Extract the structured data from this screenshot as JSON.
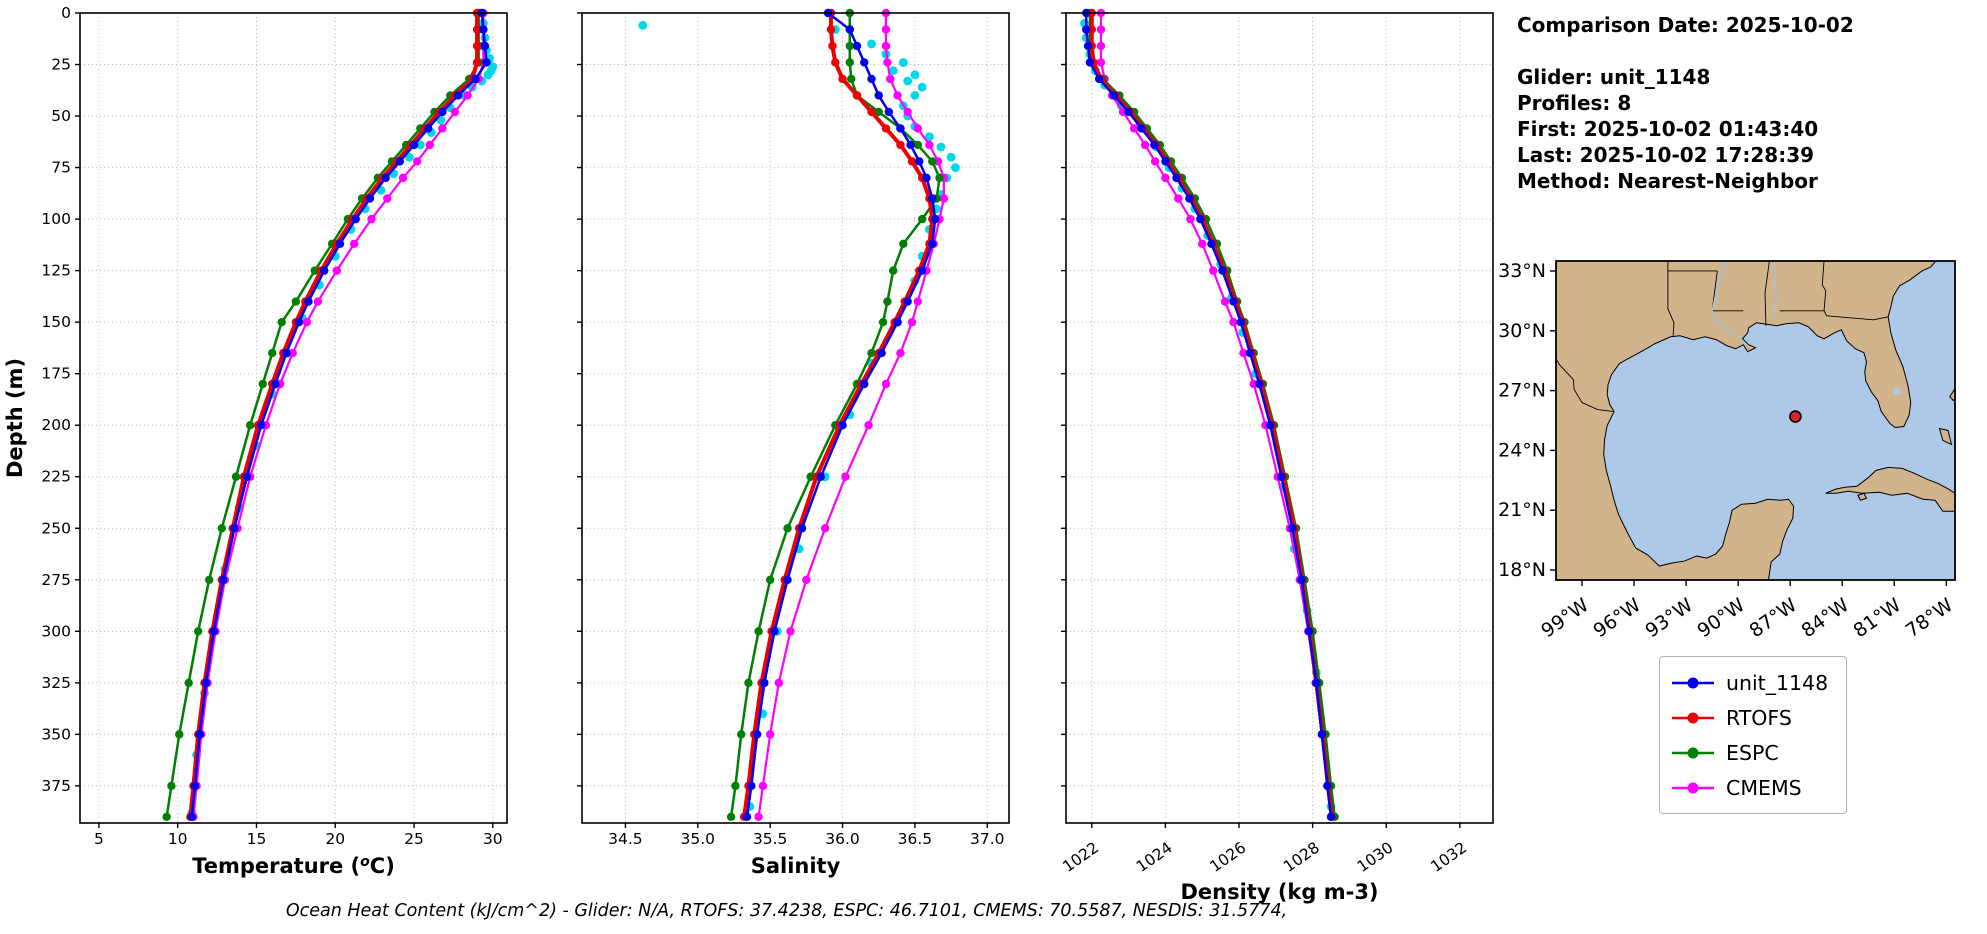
{
  "info_panel": {
    "lines": [
      "Comparison Date: 2025-10-02",
      "",
      "Glider: unit_1148",
      "Profiles: 8",
      "First: 2025-10-02 01:43:40",
      "Last: 2025-10-02 17:28:39",
      "Method: Nearest-Neighbor"
    ]
  },
  "caption": "Ocean Heat Content (kJ/cm^2) - Glider: N/A,  RTOFS: 37.4238,  ESPC: 46.7101,  CMEMS: 70.5587,  NESDIS: 31.5774,",
  "ocean_heat_content": {
    "glider": "N/A",
    "rtofs": 37.4238,
    "espc": 46.7101,
    "cmems": 70.5587,
    "nesdis": 31.5774
  },
  "legend": {
    "items": [
      {
        "label": "unit_1148",
        "color": "#0000EE"
      },
      {
        "label": "RTOFS",
        "color": "#EE0000"
      },
      {
        "label": "ESPC",
        "color": "#008000"
      },
      {
        "label": "CMEMS",
        "color": "#FF00FF"
      }
    ]
  },
  "map": {
    "extent": {
      "lon_min": -100.5,
      "lon_max": -77.5,
      "lat_min": 17.5,
      "lat_max": 33.5
    },
    "lat_tick_values": [
      33,
      30,
      27,
      24,
      21,
      18
    ],
    "lat_tick_labels": [
      "33°N",
      "30°N",
      "27°N",
      "24°N",
      "21°N",
      "18°N"
    ],
    "lon_tick_values": [
      -99,
      -96,
      -93,
      -90,
      -87,
      -84,
      -81,
      -78
    ],
    "lon_tick_labels": [
      "99°W",
      "96°W",
      "93°W",
      "90°W",
      "87°W",
      "84°W",
      "81°W",
      "78°W"
    ],
    "marker": {
      "lon": -86.7,
      "lat": 25.7,
      "color": "#d62728",
      "edge": "#000000"
    },
    "land_color": "#d2b48c",
    "ocean_color": "#aec9e8"
  },
  "chart_data": {
    "type": "line",
    "title": "Glider profile comparison vs models",
    "depth_axis": {
      "label": "Depth (m)",
      "ticks": [
        0,
        25,
        50,
        75,
        100,
        125,
        150,
        175,
        200,
        225,
        250,
        275,
        300,
        325,
        350,
        375
      ],
      "range": [
        0,
        393
      ],
      "inverted": true
    },
    "depths": [
      0,
      8,
      16,
      24,
      32,
      40,
      48,
      56,
      64,
      72,
      80,
      90,
      100,
      112,
      125,
      140,
      150,
      165,
      180,
      200,
      225,
      250,
      275,
      300,
      325,
      350,
      375,
      390
    ],
    "scatter_color": "#00D8E8",
    "panels": [
      {
        "id": "temperature",
        "xlabel_pre": "Temperature (",
        "xlabel_sup": "o",
        "xlabel_post": "C)",
        "x_range": [
          3.8,
          30.9
        ],
        "x_ticks": [
          5,
          10,
          15,
          20,
          25,
          30
        ],
        "x_tick_labels": [
          "5",
          "10",
          "15",
          "20",
          "25",
          "30"
        ],
        "rotate_x_labels": false,
        "series": [
          {
            "name": "CMEMS",
            "color": "#FF00FF",
            "lw": 2.2,
            "values": [
              29.4,
              29.4,
              29.4,
              29.4,
              29.1,
              28.4,
              27.6,
              26.8,
              26.0,
              25.2,
              24.3,
              23.3,
              22.3,
              21.2,
              20.1,
              18.9,
              18.2,
              17.3,
              16.5,
              15.6,
              14.6,
              13.8,
              13.0,
              12.4,
              11.9,
              11.5,
              11.2,
              11.0
            ]
          },
          {
            "name": "ESPC",
            "color": "#008000",
            "lw": 2.5,
            "values": [
              29.1,
              29.1,
              29.1,
              29.1,
              28.5,
              27.3,
              26.3,
              25.4,
              24.5,
              23.6,
              22.7,
              21.7,
              20.8,
              19.8,
              18.7,
              17.5,
              16.6,
              16.0,
              15.4,
              14.6,
              13.7,
              12.8,
              12.0,
              11.3,
              10.7,
              10.1,
              9.6,
              9.3
            ]
          },
          {
            "name": "RTOFS",
            "color": "#EE0000",
            "lw": 4,
            "values": [
              29.0,
              29.0,
              29.0,
              29.0,
              28.7,
              27.6,
              26.6,
              25.7,
              24.8,
              23.9,
              23.0,
              22.0,
              21.1,
              20.1,
              19.1,
              18.1,
              17.5,
              16.7,
              16.0,
              15.1,
              14.2,
              13.5,
              12.8,
              12.2,
              11.7,
              11.3,
              11.0,
              10.8
            ]
          },
          {
            "name": "unit_1148",
            "color": "#0000EE",
            "lw": 2.5,
            "values": [
              29.3,
              29.4,
              29.5,
              29.6,
              28.9,
              27.8,
              26.8,
              25.9,
              25.0,
              24.1,
              23.2,
              22.2,
              21.3,
              20.3,
              19.3,
              18.3,
              17.7,
              16.9,
              16.2,
              15.3,
              14.4,
              13.6,
              12.9,
              12.3,
              11.8,
              11.4,
              11.1,
              10.9
            ]
          }
        ],
        "scatter_points": [
          [
            5,
            29.4
          ],
          [
            12,
            29.5
          ],
          [
            18,
            29.6
          ],
          [
            22,
            29.8
          ],
          [
            26,
            30.0
          ],
          [
            28,
            29.9
          ],
          [
            30,
            29.7
          ],
          [
            33,
            29.3
          ],
          [
            36,
            28.7
          ],
          [
            40,
            28.2
          ],
          [
            46,
            27.3
          ],
          [
            52,
            26.7
          ],
          [
            58,
            26.1
          ],
          [
            64,
            25.4
          ],
          [
            70,
            24.7
          ],
          [
            78,
            23.7
          ],
          [
            86,
            22.9
          ],
          [
            95,
            21.9
          ],
          [
            105,
            21.0
          ],
          [
            118,
            20.0
          ],
          [
            132,
            19.0
          ],
          [
            148,
            17.9
          ],
          [
            165,
            17.0
          ],
          [
            185,
            16.0
          ],
          [
            210,
            15.0
          ],
          [
            240,
            13.9
          ],
          [
            270,
            13.0
          ],
          [
            300,
            12.3
          ],
          [
            330,
            11.7
          ],
          [
            360,
            11.2
          ],
          [
            388,
            10.9
          ]
        ]
      },
      {
        "id": "salinity",
        "xlabel_pre": "Salinity",
        "xlabel_sup": "",
        "xlabel_post": "",
        "x_range": [
          34.2,
          37.15
        ],
        "x_ticks": [
          34.5,
          35.0,
          35.5,
          36.0,
          36.5,
          37.0
        ],
        "x_tick_labels": [
          "34.5",
          "35.0",
          "35.5",
          "36.0",
          "36.5",
          "37.0"
        ],
        "rotate_x_labels": false,
        "series": [
          {
            "name": "CMEMS",
            "color": "#FF00FF",
            "lw": 2.2,
            "values": [
              36.3,
              36.3,
              36.3,
              36.31,
              36.33,
              36.38,
              36.45,
              36.52,
              36.6,
              36.66,
              36.7,
              36.7,
              36.67,
              36.63,
              36.58,
              36.52,
              36.48,
              36.4,
              36.3,
              36.18,
              36.02,
              35.88,
              35.75,
              35.64,
              35.56,
              35.5,
              35.45,
              35.42
            ]
          },
          {
            "name": "ESPC",
            "color": "#008000",
            "lw": 2.5,
            "values": [
              36.05,
              36.05,
              36.05,
              36.05,
              36.06,
              36.1,
              36.25,
              36.4,
              36.52,
              36.62,
              36.67,
              36.65,
              36.55,
              36.42,
              36.35,
              36.31,
              36.28,
              36.2,
              36.1,
              35.95,
              35.78,
              35.62,
              35.5,
              35.42,
              35.35,
              35.3,
              35.26,
              35.23
            ]
          },
          {
            "name": "RTOFS",
            "color": "#EE0000",
            "lw": 4,
            "values": [
              35.92,
              35.92,
              35.93,
              35.95,
              36.0,
              36.1,
              36.2,
              36.3,
              36.4,
              36.48,
              36.55,
              36.6,
              36.62,
              36.6,
              36.53,
              36.43,
              36.36,
              36.25,
              36.13,
              35.98,
              35.82,
              35.7,
              35.6,
              35.51,
              35.44,
              35.39,
              35.35,
              35.32
            ]
          },
          {
            "name": "unit_1148",
            "color": "#0000EE",
            "lw": 2.5,
            "values": [
              35.9,
              36.05,
              36.1,
              36.15,
              36.2,
              36.25,
              36.32,
              36.4,
              36.47,
              36.53,
              36.58,
              36.62,
              36.64,
              36.62,
              36.55,
              36.45,
              36.38,
              36.27,
              36.15,
              36.0,
              35.85,
              35.72,
              35.62,
              35.53,
              35.46,
              35.41,
              35.37,
              35.34
            ]
          }
        ],
        "scatter_points": [
          [
            6,
            34.62
          ],
          [
            8,
            35.95
          ],
          [
            15,
            36.2
          ],
          [
            20,
            36.3
          ],
          [
            24,
            36.42
          ],
          [
            28,
            36.35
          ],
          [
            30,
            36.5
          ],
          [
            33,
            36.45
          ],
          [
            36,
            36.55
          ],
          [
            40,
            36.5
          ],
          [
            45,
            36.42
          ],
          [
            50,
            36.45
          ],
          [
            55,
            36.5
          ],
          [
            60,
            36.6
          ],
          [
            65,
            36.68
          ],
          [
            70,
            36.75
          ],
          [
            75,
            36.78
          ],
          [
            80,
            36.72
          ],
          [
            88,
            36.68
          ],
          [
            95,
            36.65
          ],
          [
            105,
            36.6
          ],
          [
            118,
            36.55
          ],
          [
            130,
            36.5
          ],
          [
            150,
            36.38
          ],
          [
            170,
            36.2
          ],
          [
            195,
            36.05
          ],
          [
            225,
            35.88
          ],
          [
            260,
            35.7
          ],
          [
            300,
            35.55
          ],
          [
            340,
            35.45
          ],
          [
            385,
            35.36
          ]
        ]
      },
      {
        "id": "density",
        "xlabel_pre": "Density (kg m-3)",
        "xlabel_sup": "",
        "xlabel_post": "",
        "x_range": [
          1021.3,
          1032.9
        ],
        "x_ticks": [
          1022,
          1024,
          1026,
          1028,
          1030,
          1032
        ],
        "x_tick_labels": [
          "1022",
          "1024",
          "1026",
          "1028",
          "1030",
          "1032"
        ],
        "rotate_x_labels": true,
        "series": [
          {
            "name": "CMEMS",
            "color": "#FF00FF",
            "lw": 2.2,
            "values": [
              1022.25,
              1022.25,
              1022.25,
              1022.25,
              1022.35,
              1022.55,
              1022.85,
              1023.15,
              1023.45,
              1023.72,
              1024.0,
              1024.35,
              1024.68,
              1025.0,
              1025.3,
              1025.62,
              1025.85,
              1026.12,
              1026.4,
              1026.72,
              1027.05,
              1027.38,
              1027.65,
              1027.88,
              1028.08,
              1028.25,
              1028.4,
              1028.5
            ]
          },
          {
            "name": "ESPC",
            "color": "#008000",
            "lw": 2.5,
            "values": [
              1021.95,
              1021.95,
              1021.95,
              1022.0,
              1022.3,
              1022.75,
              1023.15,
              1023.5,
              1023.85,
              1024.15,
              1024.45,
              1024.8,
              1025.1,
              1025.4,
              1025.68,
              1025.95,
              1026.15,
              1026.4,
              1026.65,
              1026.95,
              1027.25,
              1027.55,
              1027.78,
              1028.0,
              1028.18,
              1028.35,
              1028.5,
              1028.6
            ]
          },
          {
            "name": "RTOFS",
            "color": "#EE0000",
            "lw": 4,
            "values": [
              1022.0,
              1022.0,
              1022.0,
              1022.05,
              1022.25,
              1022.65,
              1023.05,
              1023.4,
              1023.75,
              1024.05,
              1024.35,
              1024.7,
              1025.0,
              1025.3,
              1025.6,
              1025.9,
              1026.1,
              1026.35,
              1026.6,
              1026.9,
              1027.2,
              1027.5,
              1027.72,
              1027.92,
              1028.1,
              1028.27,
              1028.42,
              1028.52
            ]
          },
          {
            "name": "unit_1148",
            "color": "#0000EE",
            "lw": 2.5,
            "values": [
              1021.85,
              1021.85,
              1021.9,
              1021.95,
              1022.2,
              1022.6,
              1023.0,
              1023.35,
              1023.7,
              1024.0,
              1024.3,
              1024.65,
              1024.95,
              1025.25,
              1025.55,
              1025.85,
              1026.05,
              1026.3,
              1026.55,
              1026.85,
              1027.15,
              1027.45,
              1027.7,
              1027.9,
              1028.1,
              1028.25,
              1028.4,
              1028.5
            ]
          }
        ],
        "scatter_points": [
          [
            5,
            1021.8
          ],
          [
            12,
            1021.85
          ],
          [
            20,
            1021.95
          ],
          [
            28,
            1022.1
          ],
          [
            35,
            1022.35
          ],
          [
            45,
            1022.8
          ],
          [
            55,
            1023.3
          ],
          [
            65,
            1023.75
          ],
          [
            75,
            1024.1
          ],
          [
            85,
            1024.45
          ],
          [
            95,
            1024.8
          ],
          [
            108,
            1025.15
          ],
          [
            122,
            1025.5
          ],
          [
            138,
            1025.8
          ],
          [
            155,
            1026.1
          ],
          [
            175,
            1026.45
          ],
          [
            200,
            1026.85
          ],
          [
            230,
            1027.2
          ],
          [
            260,
            1027.5
          ],
          [
            290,
            1027.85
          ],
          [
            320,
            1028.1
          ],
          [
            350,
            1028.3
          ],
          [
            385,
            1028.5
          ]
        ]
      }
    ]
  }
}
